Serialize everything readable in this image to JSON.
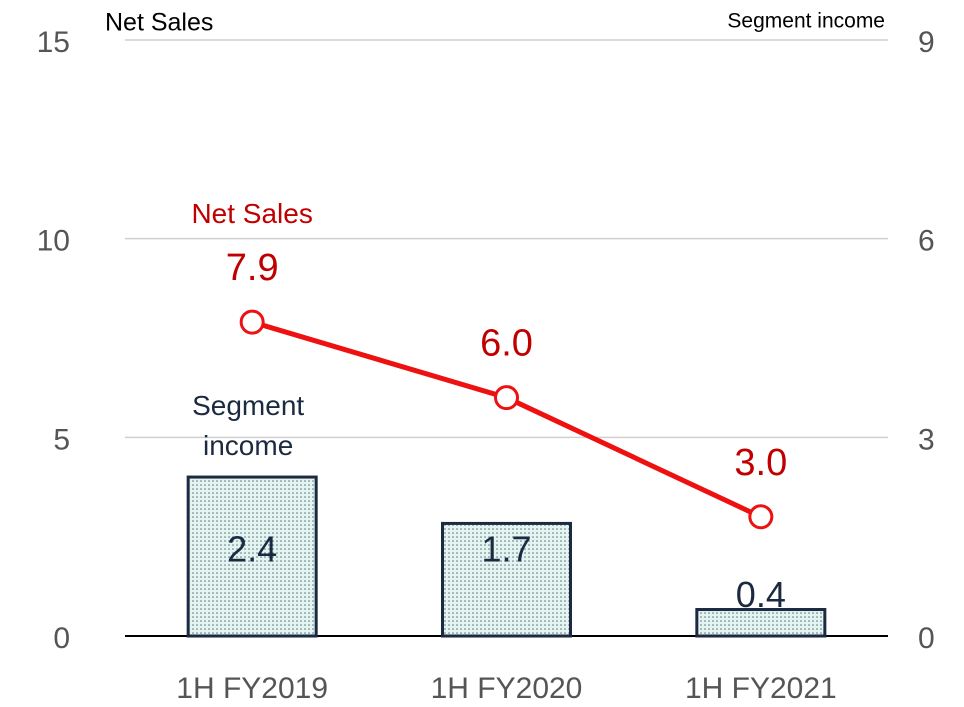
{
  "chart_data": {
    "type": "bar_line",
    "categories": [
      "1H FY2019",
      "1H FY2020",
      "1H FY2021"
    ],
    "ylabel": "Net Sales",
    "y2label": "Segment income",
    "ylim": [
      0,
      15
    ],
    "yticks": [
      0,
      5,
      10,
      15
    ],
    "y2lim": [
      0,
      9
    ],
    "y2ticks": [
      0,
      3,
      6,
      9
    ],
    "grid": true,
    "series": [
      {
        "name": "Segment income",
        "type": "bar",
        "axis": "y2",
        "color": "#1b2a41",
        "fill": "#dff0ee",
        "values": [
          2.4,
          1.7,
          0.4
        ]
      },
      {
        "name": "Net Sales",
        "type": "line",
        "axis": "y",
        "color": "#ee1111",
        "label_color": "#c00000",
        "values": [
          7.9,
          6.0,
          3.0
        ],
        "value_labels": [
          "7.9",
          "6.0",
          "3.0"
        ]
      }
    ]
  }
}
